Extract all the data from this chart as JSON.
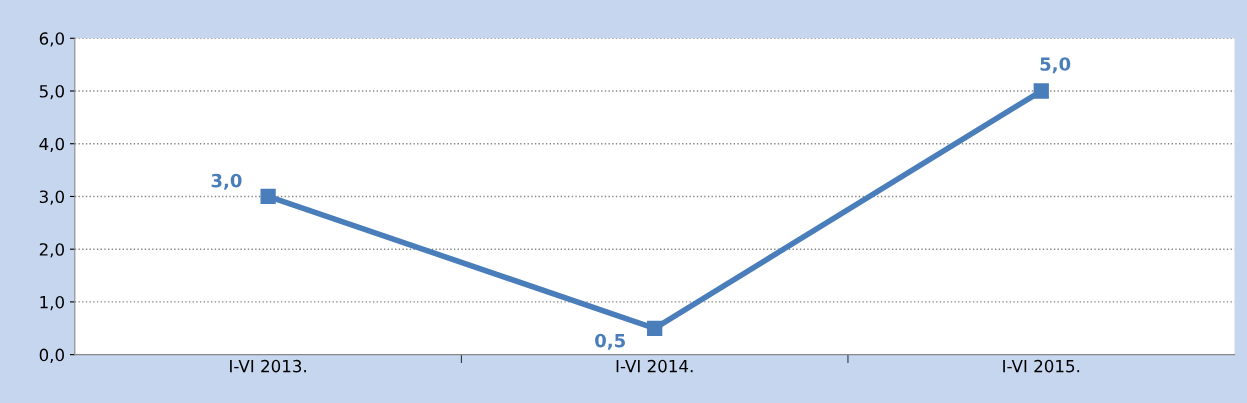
{
  "chart_data": {
    "type": "line",
    "categories": [
      "I-VI 2013.",
      "I-VI 2014.",
      "I-VI 2015."
    ],
    "series": [
      {
        "color": "#4a7ebb",
        "values": [
          3.0,
          0.5,
          5.0
        ],
        "value_labels": [
          "3,0",
          "0,5",
          "5,0"
        ]
      }
    ],
    "ylim": [
      0,
      6
    ],
    "yticks": [
      {
        "value": 0,
        "label": "0,0"
      },
      {
        "value": 1,
        "label": "1,0"
      },
      {
        "value": 2,
        "label": "2,0"
      },
      {
        "value": 3,
        "label": "3,0"
      },
      {
        "value": 4,
        "label": "4,0"
      },
      {
        "value": 5,
        "label": "5,0"
      },
      {
        "value": 6,
        "label": "6,0"
      }
    ],
    "grid": "y",
    "marker": "square",
    "line_style": "solid",
    "legend": false
  }
}
